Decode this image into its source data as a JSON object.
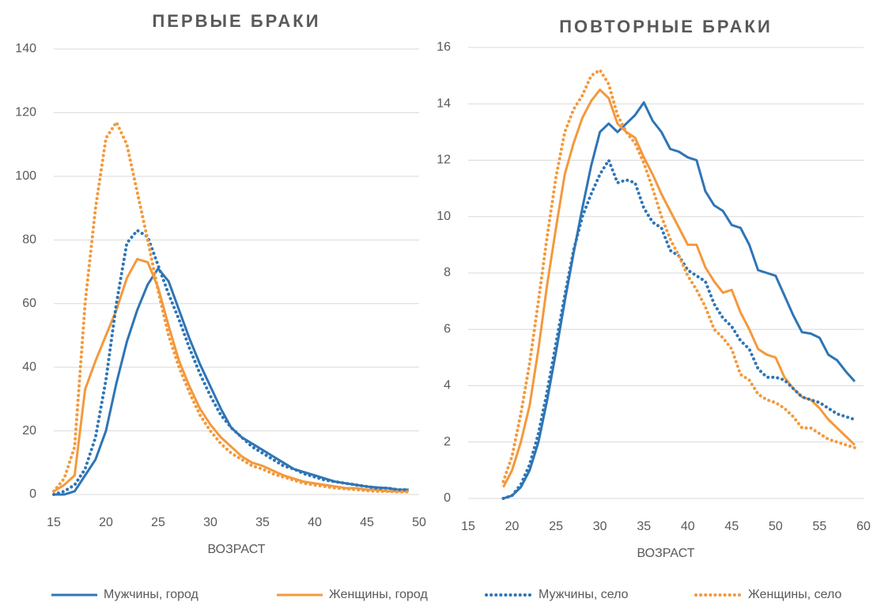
{
  "chart_data": [
    {
      "type": "line",
      "title": "ПЕРВЫЕ БРАКИ",
      "x_label": "ВОЗРАСТ",
      "xlim": [
        15,
        50
      ],
      "xticks": [
        15,
        20,
        25,
        30,
        35,
        40,
        45,
        50
      ],
      "ylim": [
        0,
        140
      ],
      "yticks": [
        0,
        20,
        40,
        60,
        80,
        100,
        120,
        140
      ],
      "grid": true,
      "x": [
        15,
        16,
        17,
        18,
        19,
        20,
        21,
        22,
        23,
        24,
        25,
        26,
        27,
        28,
        29,
        30,
        31,
        32,
        33,
        34,
        35,
        36,
        37,
        38,
        39,
        40,
        41,
        42,
        43,
        44,
        45,
        46,
        47,
        48,
        49
      ],
      "series": [
        {
          "name": "Мужчины, город",
          "color": "#2e75b6",
          "style": "solid",
          "values": [
            0,
            0,
            1,
            6,
            11,
            20,
            35,
            48,
            58,
            66,
            71,
            67,
            58,
            49,
            41,
            34,
            27,
            21,
            18,
            16,
            14,
            12,
            10,
            8,
            7,
            6,
            5,
            4,
            3.5,
            3,
            2.5,
            2.2,
            2,
            1.5,
            1.5
          ]
        },
        {
          "name": "Женщины, город",
          "color": "#f4993c",
          "style": "solid",
          "values": [
            1,
            3,
            6,
            33,
            42,
            50,
            58,
            68,
            74,
            73,
            65,
            53,
            42,
            34,
            27,
            22,
            18,
            15,
            12,
            10,
            9,
            7.5,
            6,
            5,
            4,
            3.5,
            3,
            2.5,
            2,
            2,
            1.5,
            1.5,
            1,
            1,
            1
          ]
        },
        {
          "name": "Мужчины, село",
          "color": "#2e75b6",
          "style": "dotted",
          "values": [
            0,
            1,
            3,
            8,
            18,
            36,
            60,
            79,
            83,
            81,
            72,
            63,
            55,
            46,
            38,
            31,
            25,
            21,
            18,
            15,
            13,
            11,
            9,
            8,
            6.5,
            5.5,
            4.5,
            4,
            3.5,
            3,
            2.5,
            2,
            2,
            1.5,
            1.5
          ]
        },
        {
          "name": "Женщины, село",
          "color": "#f4993c",
          "style": "dotted",
          "values": [
            1,
            5,
            15,
            60,
            90,
            112,
            117,
            110,
            95,
            80,
            64,
            50,
            40,
            32,
            25,
            20,
            16,
            13,
            11,
            9,
            8,
            6.5,
            5.5,
            4.5,
            3.5,
            3,
            2.5,
            2,
            1.8,
            1.5,
            1.2,
            1,
            1,
            0.8,
            0.8
          ]
        }
      ]
    },
    {
      "type": "line",
      "title": "ПОВТОРНЫЕ БРАКИ",
      "x_label": "ВОЗРАСТ",
      "xlim": [
        15,
        60
      ],
      "xticks": [
        15,
        20,
        25,
        30,
        35,
        40,
        45,
        50,
        55,
        60
      ],
      "ylim": [
        0,
        16
      ],
      "yticks": [
        0,
        2,
        4,
        6,
        8,
        10,
        12,
        14,
        16
      ],
      "grid": true,
      "x": [
        19,
        20,
        21,
        22,
        23,
        24,
        25,
        26,
        27,
        28,
        29,
        30,
        31,
        32,
        33,
        34,
        35,
        36,
        37,
        38,
        39,
        40,
        41,
        42,
        43,
        44,
        45,
        46,
        47,
        48,
        49,
        50,
        51,
        52,
        53,
        54,
        55,
        56,
        57,
        58,
        59
      ],
      "series": [
        {
          "name": "Мужчины, город",
          "color": "#2e75b6",
          "style": "solid",
          "values": [
            0,
            0.1,
            0.4,
            1,
            2,
            3.5,
            5.2,
            7,
            8.7,
            10.3,
            11.8,
            13,
            13.3,
            13,
            13.3,
            13.6,
            14.05,
            13.4,
            13,
            12.4,
            12.3,
            12.1,
            12,
            10.9,
            10.4,
            10.2,
            9.7,
            9.6,
            9,
            8.1,
            8,
            7.9,
            7.2,
            6.5,
            5.9,
            5.85,
            5.7,
            5.1,
            4.9,
            4.5,
            4.15
          ]
        },
        {
          "name": "Женщины, город",
          "color": "#f4993c",
          "style": "solid",
          "values": [
            0.4,
            1,
            2,
            3.3,
            5.3,
            7.6,
            9.6,
            11.5,
            12.6,
            13.5,
            14.1,
            14.5,
            14.2,
            13.3,
            13,
            12.8,
            12.1,
            11.5,
            10.8,
            10.2,
            9.6,
            9,
            9,
            8.2,
            7.7,
            7.3,
            7.4,
            6.6,
            6,
            5.3,
            5.1,
            5,
            4.3,
            3.9,
            3.6,
            3.5,
            3.2,
            2.8,
            2.5,
            2.2,
            1.9
          ]
        },
        {
          "name": "Мужчины, село",
          "color": "#2e75b6",
          "style": "dotted",
          "values": [
            0,
            0.1,
            0.5,
            1.2,
            2.3,
            3.8,
            5.5,
            7.2,
            8.8,
            10,
            10.8,
            11.5,
            12,
            11.2,
            11.3,
            11.2,
            10.3,
            9.8,
            9.6,
            8.8,
            8.6,
            8.1,
            7.9,
            7.7,
            6.9,
            6.4,
            6.1,
            5.6,
            5.3,
            4.6,
            4.3,
            4.3,
            4.2,
            3.9,
            3.6,
            3.5,
            3.4,
            3.2,
            3,
            2.9,
            2.8
          ]
        },
        {
          "name": "Женщины, село",
          "color": "#f4993c",
          "style": "dotted",
          "values": [
            0.6,
            1.5,
            3,
            4.8,
            7,
            9.3,
            11.4,
            13,
            13.8,
            14.3,
            15,
            15.2,
            14.7,
            13.6,
            13,
            12.6,
            11.9,
            11,
            10,
            9.2,
            8.6,
            7.9,
            7.4,
            6.8,
            6,
            5.7,
            5.3,
            4.4,
            4.2,
            3.7,
            3.5,
            3.4,
            3.2,
            2.9,
            2.5,
            2.5,
            2.3,
            2.1,
            2,
            1.9,
            1.8
          ]
        }
      ]
    }
  ]
}
